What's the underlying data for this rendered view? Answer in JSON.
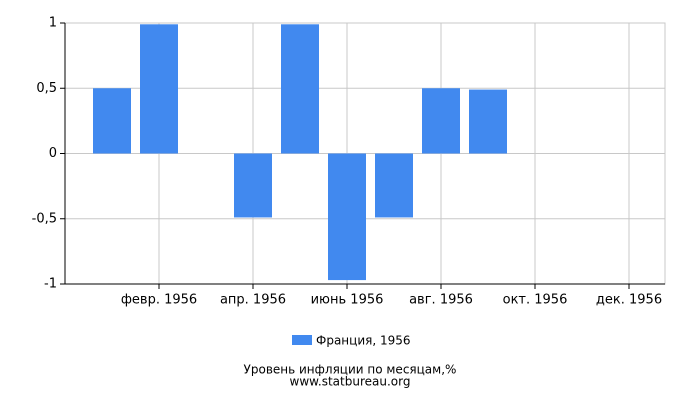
{
  "chart_data": {
    "type": "bar",
    "title": "Уровень инфляции по месяцам,%",
    "source": "www.statbureau.org",
    "categories": [
      null,
      "февр. 1956",
      null,
      "апр. 1956",
      null,
      "июнь 1956",
      null,
      "авг. 1956",
      null,
      "окт. 1956",
      null,
      "дек. 1956"
    ],
    "series": [
      {
        "name": "Франция, 1956",
        "color": "#4189ef",
        "values": [
          0.5,
          0.99,
          0,
          -0.49,
          0.99,
          -0.97,
          -0.49,
          0.5,
          0.49,
          0,
          0,
          0
        ]
      }
    ],
    "ylim": [
      -1,
      1
    ],
    "yticks": [
      {
        "value": -1,
        "label": "-1"
      },
      {
        "value": -0.5,
        "label": "-0,5"
      },
      0,
      {
        "value": 0.5,
        "label": "0,5"
      },
      1
    ],
    "grid": true
  }
}
